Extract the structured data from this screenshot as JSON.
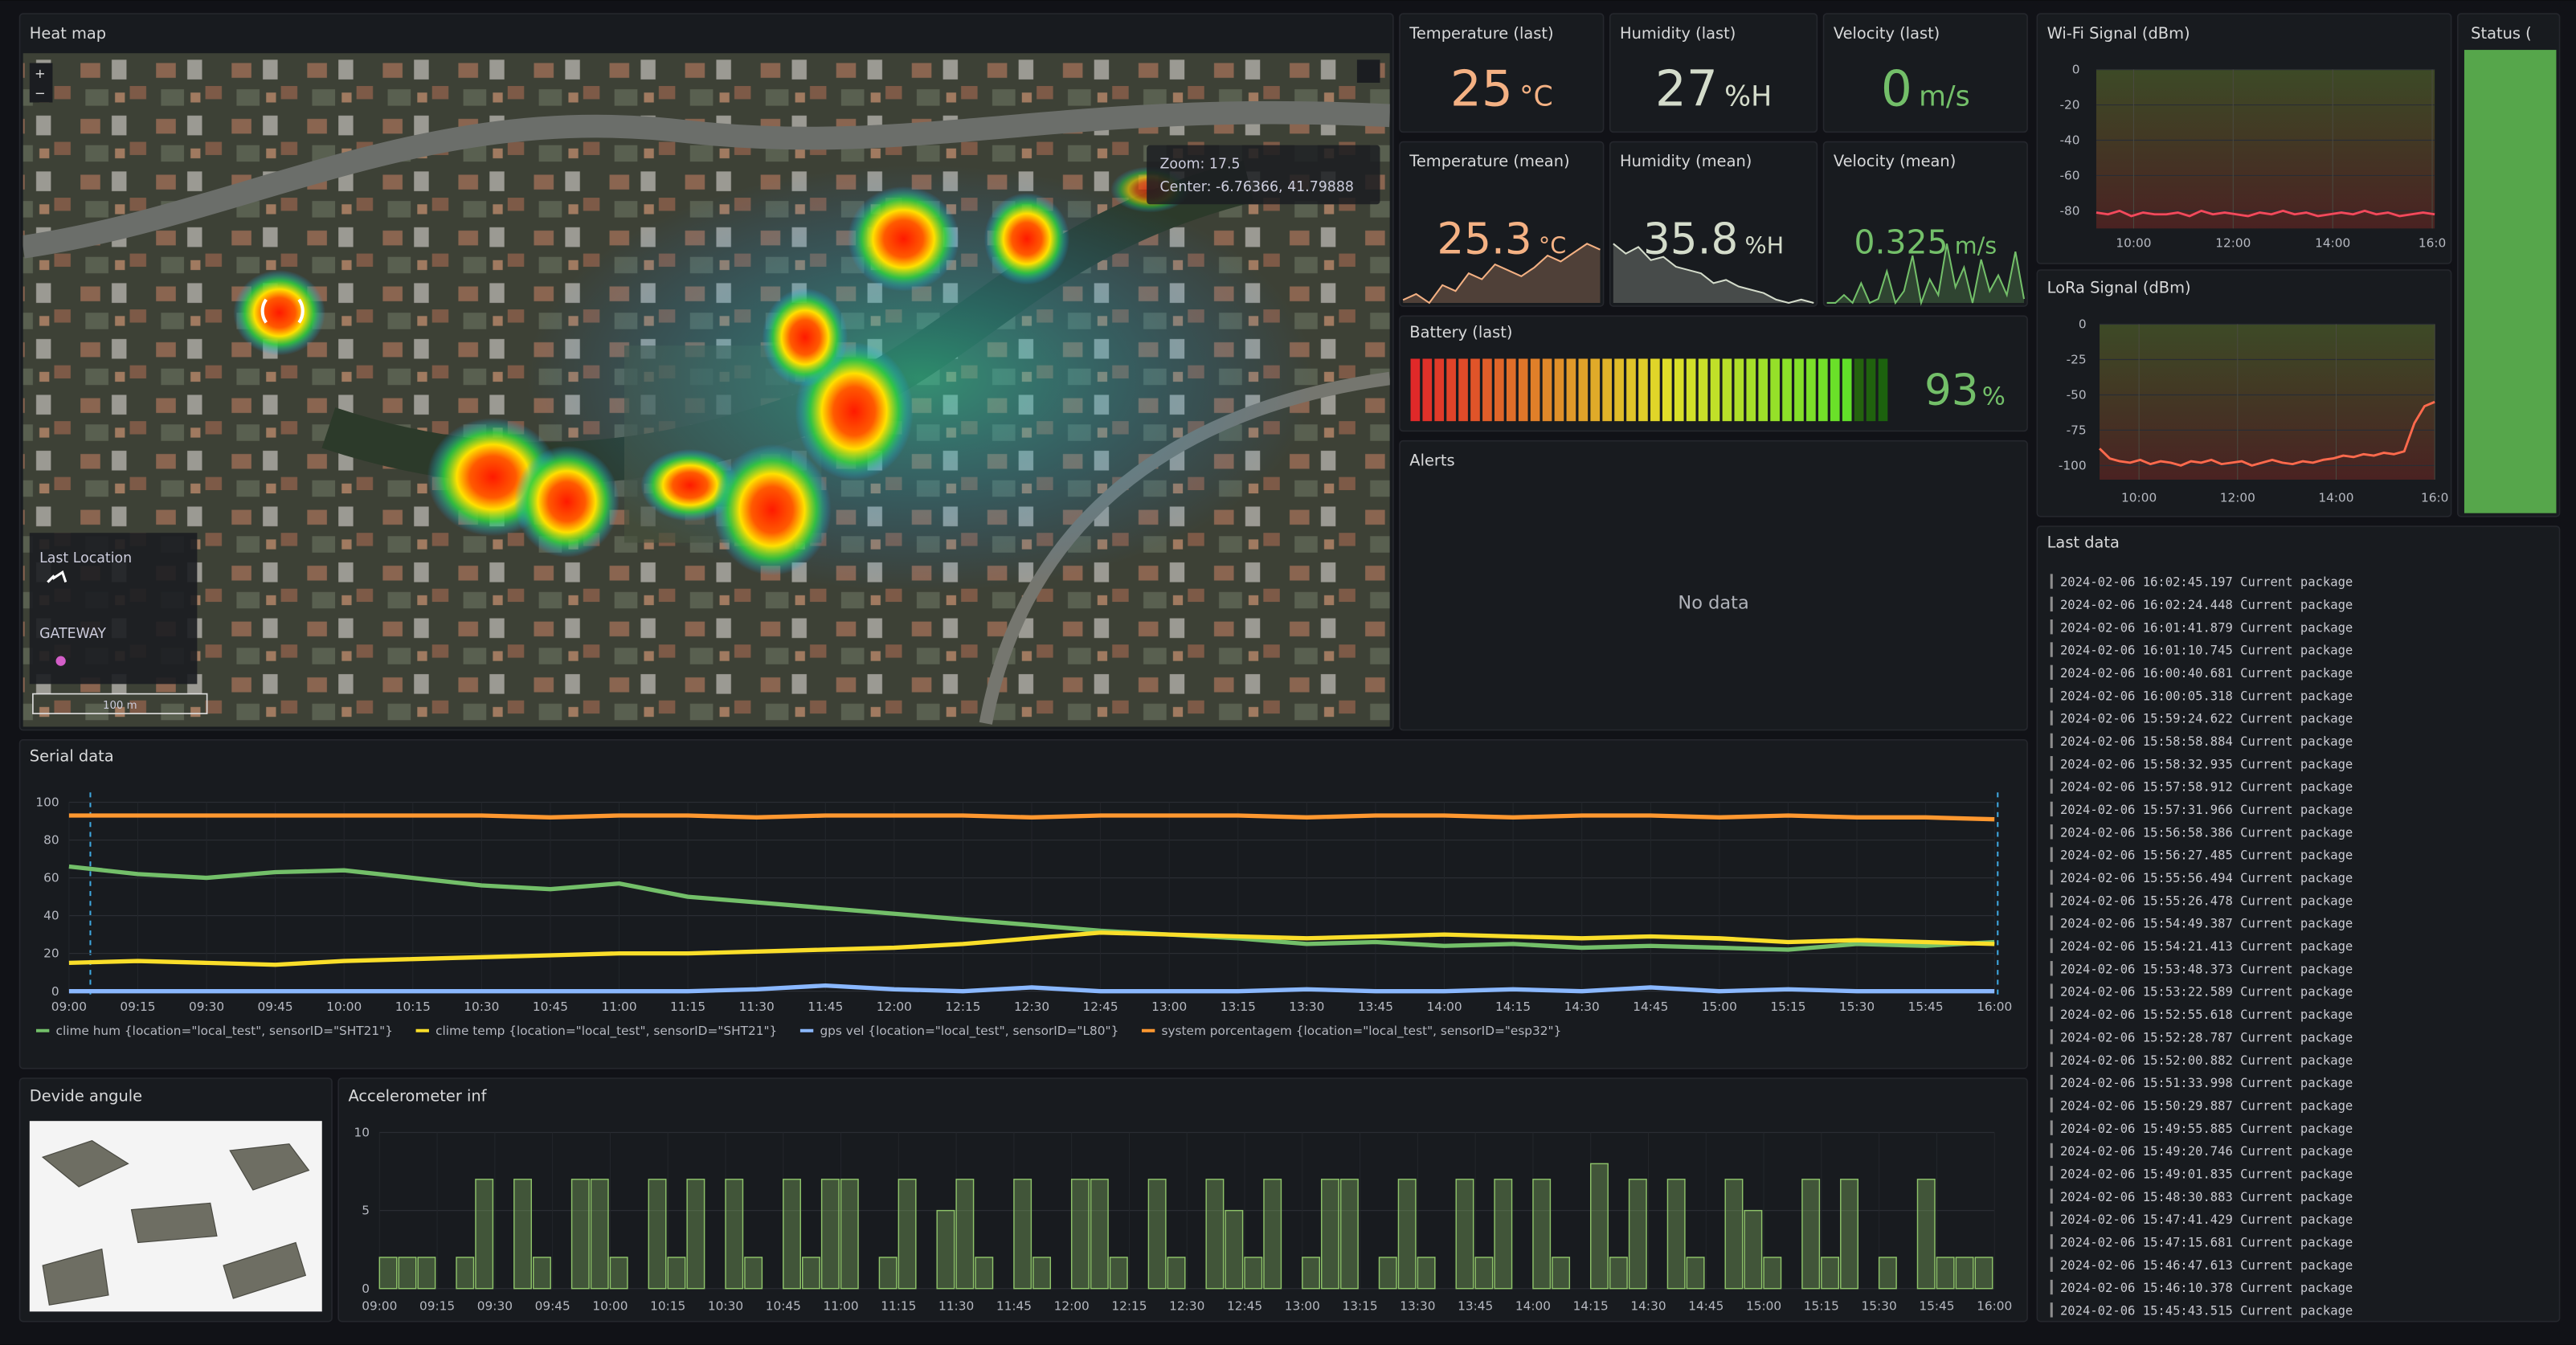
{
  "heat_map": {
    "title": "Heat map",
    "zoom": "Zoom:  17.5",
    "center": "Center: -6.76366, 41.79888",
    "legend": [
      "Last Location",
      "GATEWAY"
    ],
    "scale": "100 m",
    "zoom_in": "+",
    "zoom_out": "−"
  },
  "stats": [
    {
      "title": "Temperature (last)",
      "value": 25,
      "unit": "°C",
      "color": "#f4b183"
    },
    {
      "title": "Humidity (last)",
      "value": 27,
      "unit": "%H",
      "color": "#d4dccb"
    },
    {
      "title": "Velocity (last)",
      "value": 0,
      "unit": "m/s",
      "color": "#73bf69"
    },
    {
      "title": "Temperature (mean)",
      "value": 25.3,
      "unit": "°C",
      "color": "#f4b183",
      "series": [
        24.1,
        24.3,
        24.0,
        24.6,
        24.4,
        25.0,
        24.8,
        25.3,
        25.1,
        24.9,
        25.2,
        25.6,
        25.4,
        25.7,
        26.0,
        25.8
      ]
    },
    {
      "title": "Humidity (mean)",
      "value": 35.8,
      "unit": "%H",
      "color": "#d4dccb",
      "series": [
        45,
        42,
        44,
        40,
        41,
        38,
        37,
        36,
        33,
        34,
        32,
        31,
        30,
        28,
        27,
        28,
        27
      ]
    },
    {
      "title": "Velocity (mean)",
      "value": 0.325,
      "unit": "m/s",
      "color": "#73bf69",
      "series": [
        0,
        0,
        0.2,
        0,
        0.5,
        0,
        0.1,
        0.8,
        0,
        0.3,
        1.2,
        0,
        0.6,
        0.2,
        1.5,
        0.4,
        0.9,
        0,
        1.1,
        0.3,
        0.7,
        0.2,
        1.3,
        0.1
      ]
    }
  ],
  "battery": {
    "title": "Battery (last)",
    "value": 93,
    "unit": "%",
    "range": [
      0,
      100
    ],
    "color": "#73bf69"
  },
  "alerts": {
    "title": "Alerts",
    "message": "No data"
  },
  "status": {
    "title": "Status ("
  },
  "device_angle": {
    "title": "Devide angule"
  },
  "last_data": {
    "title": "Last data",
    "rows": [
      "2024-02-06 16:02:45.197 Current package",
      "2024-02-06 16:02:24.448 Current package",
      "2024-02-06 16:01:41.879 Current package",
      "2024-02-06 16:01:10.745 Current package",
      "2024-02-06 16:00:40.681 Current package",
      "2024-02-06 16:00:05.318 Current package",
      "2024-02-06 15:59:24.622 Current package",
      "2024-02-06 15:58:58.884 Current package",
      "2024-02-06 15:58:32.935 Current package",
      "2024-02-06 15:57:58.912 Current package",
      "2024-02-06 15:57:31.966 Current package",
      "2024-02-06 15:56:58.386 Current package",
      "2024-02-06 15:56:27.485 Current package",
      "2024-02-06 15:55:56.494 Current package",
      "2024-02-06 15:55:26.478 Current package",
      "2024-02-06 15:54:49.387 Current package",
      "2024-02-06 15:54:21.413 Current package",
      "2024-02-06 15:53:48.373 Current package",
      "2024-02-06 15:53:22.589 Current package",
      "2024-02-06 15:52:55.618 Current package",
      "2024-02-06 15:52:28.787 Current package",
      "2024-02-06 15:52:00.882 Current package",
      "2024-02-06 15:51:33.998 Current package",
      "2024-02-06 15:50:29.887 Current package",
      "2024-02-06 15:49:55.885 Current package",
      "2024-02-06 15:49:20.746 Current package",
      "2024-02-06 15:49:01.835 Current package",
      "2024-02-06 15:48:30.883 Current package",
      "2024-02-06 15:47:41.429 Current package",
      "2024-02-06 15:47:15.681 Current package",
      "2024-02-06 15:46:47.613 Current package",
      "2024-02-06 15:46:10.378 Current package",
      "2024-02-06 15:45:43.515 Current package"
    ]
  },
  "chart_data": [
    {
      "type": "line",
      "title": "Serial data",
      "x": [
        "09:00",
        "09:15",
        "09:30",
        "09:45",
        "10:00",
        "10:15",
        "10:30",
        "10:45",
        "11:00",
        "11:15",
        "11:30",
        "11:45",
        "12:00",
        "12:15",
        "12:30",
        "12:45",
        "13:00",
        "13:15",
        "13:30",
        "13:45",
        "14:00",
        "14:15",
        "14:30",
        "14:45",
        "15:00",
        "15:15",
        "15:30",
        "15:45",
        "16:00"
      ],
      "ylim": [
        0,
        100
      ],
      "yticks": [
        0,
        20,
        40,
        60,
        80,
        100
      ],
      "grid": true,
      "series": [
        {
          "name": "clime hum {location=\"local_test\", sensorID=\"SHT21\"}",
          "color": "#73bf69",
          "values": [
            66,
            62,
            60,
            63,
            64,
            60,
            56,
            54,
            57,
            50,
            47,
            44,
            41,
            38,
            35,
            32,
            30,
            28,
            25,
            26,
            24,
            25,
            23,
            24,
            23,
            22,
            25,
            24,
            26
          ]
        },
        {
          "name": "clime temp {location=\"local_test\", sensorID=\"SHT21\"}",
          "color": "#fade2a",
          "values": [
            15,
            16,
            15,
            14,
            16,
            17,
            18,
            19,
            20,
            20,
            21,
            22,
            23,
            25,
            28,
            31,
            30,
            29,
            28,
            29,
            30,
            29,
            28,
            29,
            28,
            26,
            27,
            26,
            25
          ]
        },
        {
          "name": "gps vel {location=\"local_test\", sensorID=\"L80\"}",
          "color": "#8ab8ff",
          "values": [
            0,
            0,
            0,
            0,
            0,
            0,
            0,
            0,
            0,
            0,
            1,
            3,
            1,
            0,
            2,
            0,
            0,
            0,
            1,
            0,
            0,
            1,
            0,
            2,
            0,
            1,
            0,
            0,
            0
          ]
        },
        {
          "name": "system porcentagem {location=\"local_test\", sensorID=\"esp32\"}",
          "color": "#ff9830",
          "values": [
            93,
            93,
            93,
            93,
            93,
            93,
            93,
            92,
            93,
            93,
            92,
            93,
            93,
            93,
            92,
            93,
            93,
            93,
            92,
            93,
            93,
            92,
            93,
            93,
            92,
            93,
            92,
            92,
            91
          ]
        }
      ]
    },
    {
      "type": "line",
      "title": "Wi-Fi Signal (dBm)",
      "ylim": [
        -90,
        0
      ],
      "yticks": [
        0,
        -20,
        -40,
        -60,
        -80
      ],
      "xlim": [
        9.25,
        16.05
      ],
      "xticks": [
        {
          "value": 10,
          "label": "10:00"
        },
        {
          "value": 12,
          "label": "12:00"
        },
        {
          "value": 14,
          "label": "14:00"
        },
        {
          "value": 16,
          "label": "16:0"
        }
      ],
      "series": [
        {
          "color": "#f2495c",
          "values": [
            -81,
            -82,
            -80,
            -83,
            -81,
            -82,
            -82,
            -81,
            -83,
            -80,
            -82,
            -81,
            -82,
            -83,
            -81,
            -82,
            -80,
            -82,
            -81,
            -83,
            -82,
            -81,
            -82,
            -80,
            -82,
            -81,
            -83,
            -82,
            -81,
            -82
          ]
        }
      ]
    },
    {
      "type": "line",
      "title": "LoRa Signal (dBm)",
      "ylim": [
        -110,
        0
      ],
      "yticks": [
        0,
        -25,
        -50,
        -75,
        -100
      ],
      "xlim": [
        9.2,
        16.0
      ],
      "xticks": [
        {
          "value": 10,
          "label": "10:00"
        },
        {
          "value": 12,
          "label": "12:00"
        },
        {
          "value": 14,
          "label": "14:00"
        },
        {
          "value": 16,
          "label": "16:0"
        }
      ],
      "series": [
        {
          "color": "#ff6a4d",
          "values": [
            -88,
            -95,
            -97,
            -98,
            -96,
            -99,
            -97,
            -98,
            -100,
            -97,
            -98,
            -96,
            -99,
            -98,
            -97,
            -100,
            -98,
            -96,
            -98,
            -99,
            -97,
            -98,
            -96,
            -95,
            -93,
            -94,
            -92,
            -93,
            -91,
            -92,
            -90,
            -70,
            -58,
            -55
          ]
        }
      ]
    },
    {
      "type": "bar",
      "title": "Accelerometer inf",
      "ylim": [
        0,
        10
      ],
      "yticks": [
        0,
        5,
        10
      ],
      "color": "#8fc46a",
      "xticks": [
        "09:00",
        "09:15",
        "09:30",
        "09:45",
        "10:00",
        "10:15",
        "10:30",
        "10:45",
        "11:00",
        "11:15",
        "11:30",
        "11:45",
        "12:00",
        "12:15",
        "12:30",
        "12:45",
        "13:00",
        "13:15",
        "13:30",
        "13:45",
        "14:00",
        "14:15",
        "14:30",
        "14:45",
        "15:00",
        "15:15",
        "15:30",
        "15:45",
        "16:00"
      ],
      "values": [
        2,
        2,
        2,
        0,
        2,
        7,
        0,
        7,
        2,
        0,
        7,
        7,
        2,
        0,
        7,
        2,
        7,
        0,
        7,
        2,
        0,
        7,
        2,
        7,
        7,
        0,
        2,
        7,
        0,
        5,
        7,
        2,
        0,
        7,
        2,
        0,
        7,
        7,
        2,
        0,
        7,
        2,
        0,
        7,
        5,
        2,
        7,
        0,
        2,
        7,
        7,
        0,
        2,
        7,
        2,
        0,
        7,
        2,
        7,
        0,
        7,
        2,
        0,
        8,
        2,
        7,
        0,
        7,
        2,
        0,
        7,
        5,
        2,
        0,
        7,
        2,
        7,
        0,
        2,
        0,
        7,
        2,
        2,
        2
      ]
    }
  ]
}
